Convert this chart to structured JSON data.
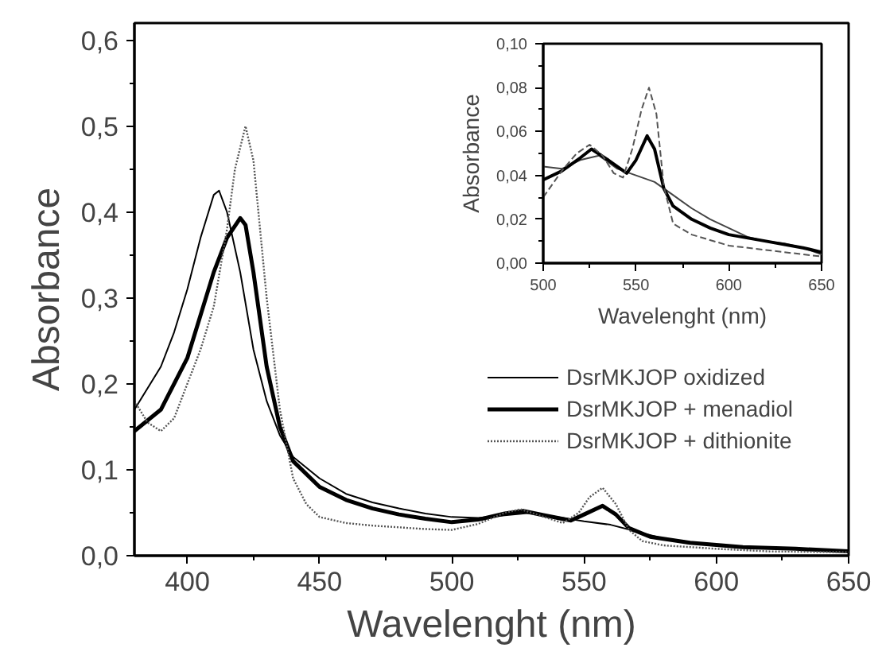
{
  "chart_data": [
    {
      "type": "line",
      "xlabel": "Wavelenght (nm)",
      "ylabel": "Absorbance",
      "xlim": [
        380,
        650
      ],
      "ylim": [
        0,
        0.62
      ],
      "xticks": [
        400,
        450,
        500,
        550,
        600,
        650
      ],
      "yticks": [
        {
          "value": 0,
          "label": "0,0"
        },
        {
          "value": 0.1,
          "label": "0,1"
        },
        {
          "value": 0.2,
          "label": "0,2"
        },
        {
          "value": 0.3,
          "label": "0,3"
        },
        {
          "value": 0.4,
          "label": "0,4"
        },
        {
          "value": 0.5,
          "label": "0,5"
        },
        {
          "value": 0.6,
          "label": "0,6"
        }
      ],
      "grid": false,
      "legend": "right",
      "marker": "none",
      "series": [
        {
          "name": "DsrMKJOP oxidized",
          "color": "#000000",
          "line_style": "solid",
          "x": [
            380,
            390,
            395,
            400,
            405,
            410,
            412,
            415,
            420,
            425,
            430,
            435,
            440,
            450,
            460,
            470,
            480,
            490,
            500,
            510,
            520,
            530,
            540,
            550,
            560,
            570,
            580,
            600,
            620,
            640,
            650
          ],
          "values": [
            0.17,
            0.22,
            0.26,
            0.31,
            0.37,
            0.42,
            0.425,
            0.4,
            0.33,
            0.24,
            0.18,
            0.14,
            0.115,
            0.09,
            0.072,
            0.062,
            0.055,
            0.049,
            0.045,
            0.044,
            0.047,
            0.05,
            0.045,
            0.04,
            0.036,
            0.028,
            0.02,
            0.012,
            0.009,
            0.006,
            0.005
          ]
        },
        {
          "name": "DsrMKJOP + menadiol",
          "color": "#000000",
          "line_style": "solid",
          "x": [
            380,
            390,
            400,
            405,
            410,
            415,
            420,
            422,
            425,
            430,
            435,
            440,
            450,
            460,
            470,
            480,
            490,
            500,
            510,
            520,
            527,
            535,
            545,
            550,
            557,
            562,
            567,
            575,
            590,
            610,
            630,
            650
          ],
          "values": [
            0.145,
            0.17,
            0.23,
            0.28,
            0.33,
            0.37,
            0.393,
            0.385,
            0.33,
            0.22,
            0.15,
            0.11,
            0.08,
            0.065,
            0.055,
            0.048,
            0.043,
            0.039,
            0.042,
            0.049,
            0.052,
            0.047,
            0.041,
            0.048,
            0.058,
            0.048,
            0.032,
            0.022,
            0.015,
            0.01,
            0.008,
            0.005
          ]
        },
        {
          "name": "DsrMKJOP + dithionite",
          "color": "#555555",
          "line_style": "dotted",
          "x": [
            380,
            385,
            390,
            395,
            400,
            405,
            410,
            415,
            418,
            422,
            425,
            430,
            435,
            440,
            445,
            450,
            460,
            470,
            480,
            490,
            500,
            510,
            520,
            526,
            535,
            542,
            548,
            552,
            557,
            562,
            567,
            572,
            580,
            600,
            620,
            650
          ],
          "values": [
            0.18,
            0.155,
            0.145,
            0.16,
            0.2,
            0.24,
            0.29,
            0.38,
            0.45,
            0.5,
            0.46,
            0.3,
            0.17,
            0.09,
            0.06,
            0.045,
            0.038,
            0.035,
            0.033,
            0.031,
            0.03,
            0.037,
            0.05,
            0.054,
            0.045,
            0.038,
            0.05,
            0.068,
            0.079,
            0.06,
            0.03,
            0.017,
            0.012,
            0.008,
            0.005,
            0.004
          ]
        }
      ]
    },
    {
      "type": "line",
      "xlabel": "Wavelenght (nm)",
      "ylabel": "Absorbance",
      "xlim": [
        500,
        650
      ],
      "ylim": [
        0,
        0.1
      ],
      "xticks": [
        500,
        550,
        600,
        650
      ],
      "yticks": [
        {
          "value": 0,
          "label": "0,00"
        },
        {
          "value": 0.02,
          "label": "0,02"
        },
        {
          "value": 0.04,
          "label": "0,04"
        },
        {
          "value": 0.06,
          "label": "0,06"
        },
        {
          "value": 0.08,
          "label": "0,08"
        },
        {
          "value": 0.1,
          "label": "0,10"
        }
      ],
      "grid": false,
      "legend": false,
      "marker": "none",
      "series": [
        {
          "color": "#444444",
          "line_style": "solid",
          "x": [
            500,
            510,
            520,
            530,
            540,
            550,
            560,
            570,
            580,
            590,
            600,
            610,
            620,
            630,
            640,
            650
          ],
          "values": [
            0.044,
            0.043,
            0.047,
            0.049,
            0.043,
            0.04,
            0.037,
            0.031,
            0.025,
            0.02,
            0.016,
            0.012,
            0.01,
            0.009,
            0.007,
            0.004
          ]
        },
        {
          "color": "#000000",
          "line_style": "solid",
          "x": [
            500,
            510,
            520,
            526,
            535,
            545,
            550,
            556,
            560,
            565,
            570,
            580,
            590,
            600,
            620,
            640,
            650
          ],
          "values": [
            0.038,
            0.042,
            0.048,
            0.052,
            0.047,
            0.041,
            0.047,
            0.058,
            0.052,
            0.034,
            0.026,
            0.02,
            0.016,
            0.013,
            0.01,
            0.007,
            0.005
          ]
        },
        {
          "color": "#555555",
          "line_style": "dashed",
          "x": [
            500,
            510,
            518,
            525,
            532,
            538,
            543,
            548,
            553,
            557,
            561,
            565,
            570,
            580,
            600,
            620,
            650
          ],
          "values": [
            0.03,
            0.042,
            0.05,
            0.054,
            0.049,
            0.041,
            0.039,
            0.052,
            0.07,
            0.08,
            0.068,
            0.035,
            0.018,
            0.013,
            0.008,
            0.006,
            0.003
          ]
        }
      ]
    }
  ]
}
